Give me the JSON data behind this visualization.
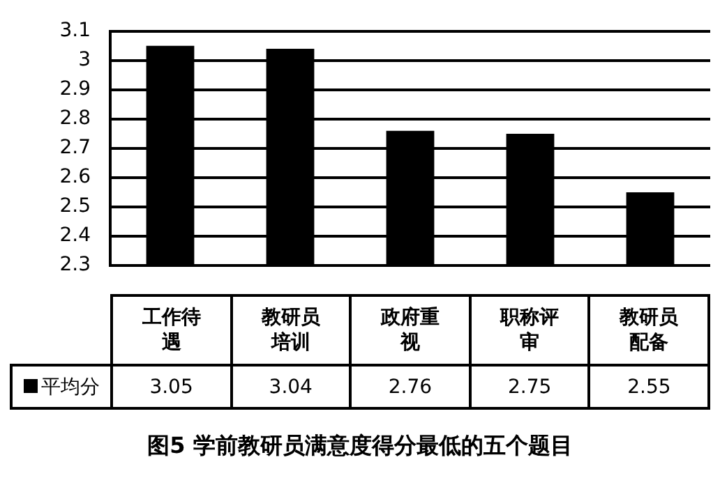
{
  "chart_data": {
    "type": "bar",
    "title": "图5  学前教研员满意度得分最低的五个题目",
    "categories": [
      "工作待遇",
      "教研员培训",
      "政府重视",
      "职称评审",
      "教研员配备"
    ],
    "series": [
      {
        "name": "平均分",
        "color": "#000000",
        "values": [
          3.05,
          3.04,
          2.76,
          2.75,
          2.55
        ]
      }
    ],
    "ylim": [
      2.3,
      3.1
    ],
    "yticks": [
      2.3,
      2.4,
      2.5,
      2.6,
      2.7,
      2.8,
      2.9,
      3,
      3.1
    ],
    "grid": "y",
    "legend": "bottom",
    "data_labels": true
  }
}
